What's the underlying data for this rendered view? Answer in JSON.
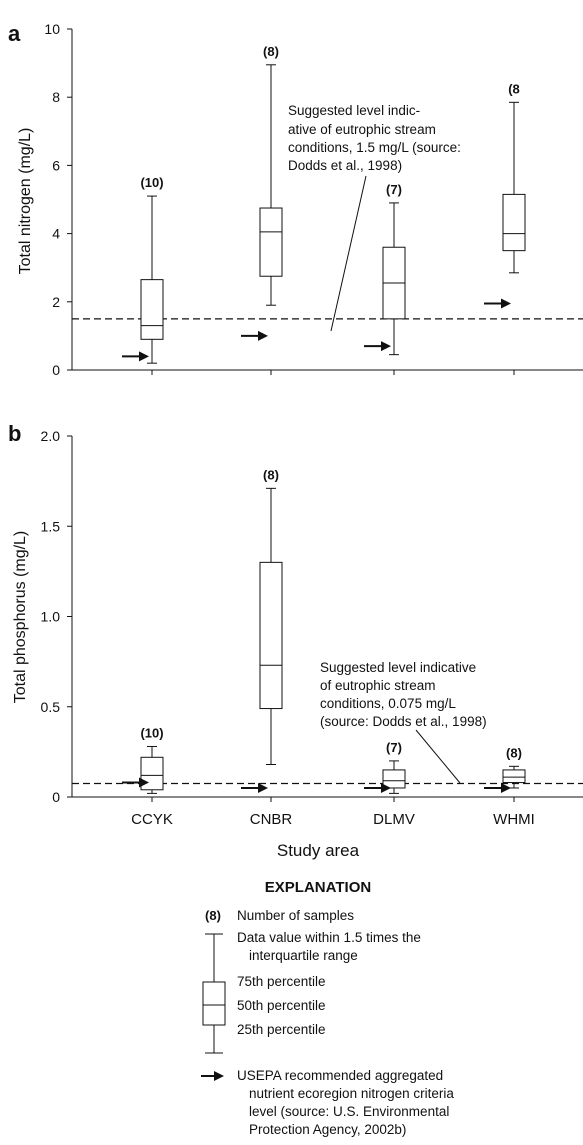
{
  "chart_data": [
    {
      "panel": "a",
      "type": "box",
      "ylabel": "Total nitrogen (mg/L)",
      "ylim": [
        0,
        10
      ],
      "yticks": [
        "0",
        "2",
        "4",
        "6",
        "8",
        "10"
      ],
      "categories": [
        "CCYK",
        "CNBR",
        "DLMV",
        "WHMI"
      ],
      "boxes": [
        {
          "category": "CCYK",
          "whisker_low": 0.2,
          "q1": 0.9,
          "median": 1.3,
          "q3": 2.65,
          "whisker_high": 5.1,
          "n_label": "(10)",
          "usepa": 0.4
        },
        {
          "category": "CNBR",
          "whisker_low": 1.9,
          "q1": 2.75,
          "median": 4.05,
          "q3": 4.75,
          "whisker_high": 8.95,
          "n_label": "(8)",
          "usepa": 1.0
        },
        {
          "category": "DLMV",
          "whisker_low": 0.45,
          "q1": 1.5,
          "median": 2.55,
          "q3": 3.6,
          "whisker_high": 4.9,
          "n_label": "(7)",
          "usepa": 0.7
        },
        {
          "category": "WHMI",
          "whisker_low": 2.85,
          "q1": 3.5,
          "median": 4.0,
          "q3": 5.15,
          "whisker_high": 7.85,
          "n_label": "(8",
          "usepa": 1.95
        }
      ],
      "reference_line": 1.5,
      "annotation": [
        "Suggested level indic-",
        "ative of eutrophic stream",
        "conditions, 1.5 mg/L (source:",
        "Dodds et al., 1998)"
      ]
    },
    {
      "panel": "b",
      "type": "box",
      "ylabel": "Total phosphorus (mg/L)",
      "xlabel": "Study area",
      "ylim": [
        0,
        2.0
      ],
      "yticks": [
        "0",
        "0.5",
        "1.0",
        "1.5",
        "2.0"
      ],
      "categories": [
        "CCYK",
        "CNBR",
        "DLMV",
        "WHMI"
      ],
      "boxes": [
        {
          "category": "CCYK",
          "whisker_low": 0.02,
          "q1": 0.04,
          "median": 0.12,
          "q3": 0.22,
          "whisker_high": 0.28,
          "n_label": "(10)",
          "usepa": 0.08
        },
        {
          "category": "CNBR",
          "whisker_low": 0.18,
          "q1": 0.49,
          "median": 0.73,
          "q3": 1.3,
          "whisker_high": 1.71,
          "n_label": "(8)",
          "usepa": 0.05
        },
        {
          "category": "DLMV",
          "whisker_low": 0.02,
          "q1": 0.05,
          "median": 0.09,
          "q3": 0.15,
          "whisker_high": 0.2,
          "n_label": "(7)",
          "usepa": 0.05
        },
        {
          "category": "WHMI",
          "whisker_low": 0.05,
          "q1": 0.08,
          "median": 0.11,
          "q3": 0.15,
          "whisker_high": 0.17,
          "n_label": "(8)",
          "usepa": 0.05
        }
      ],
      "reference_line": 0.075,
      "annotation": [
        "Suggested level indicative",
        "of eutrophic stream",
        "conditions, 0.075 mg/L",
        "(source: Dodds et al., 1998)"
      ]
    }
  ],
  "explanation": {
    "title": "EXPLANATION",
    "n_sample_label": "(8)",
    "number_of_samples": "Number of samples",
    "whisker_text": [
      "Data value within 1.5 times the",
      "interquartile range"
    ],
    "p75": "75th percentile",
    "p50": "50th percentile",
    "p25": "25th percentile",
    "usepa_text": [
      "USEPA recommended aggregated",
      "nutrient ecoregion nitrogen criteria",
      "level (source: U.S. Environmental",
      "Protection Agency, 2002b)"
    ]
  }
}
